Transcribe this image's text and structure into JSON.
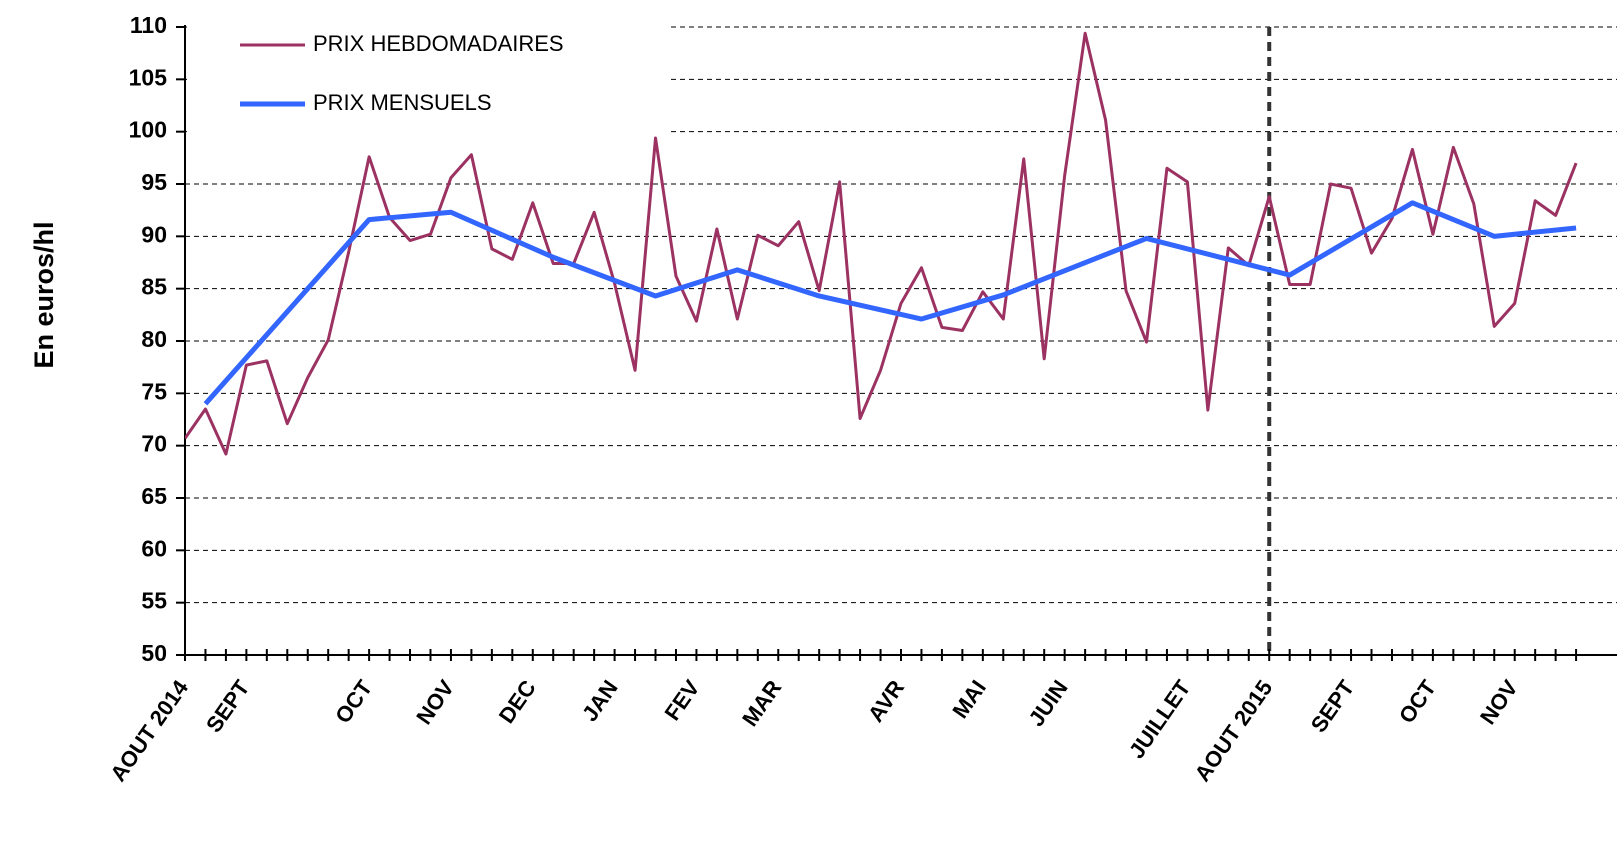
{
  "chart_data": {
    "type": "line",
    "y_label": "En euros/hl",
    "categories": [
      "AOUT 2014",
      null,
      null,
      "SEPT",
      null,
      null,
      null,
      null,
      null,
      "OCT",
      null,
      null,
      null,
      "NOV",
      null,
      null,
      null,
      "DEC",
      null,
      null,
      null,
      "JAN",
      null,
      null,
      null,
      "FEV",
      null,
      null,
      null,
      "MAR",
      null,
      null,
      null,
      null,
      null,
      "AVR",
      null,
      null,
      null,
      "MAI",
      null,
      null,
      null,
      "JUIN",
      null,
      null,
      null,
      null,
      null,
      "JUILLET",
      null,
      null,
      null,
      "AOUT 2015",
      null,
      null,
      null,
      "SEPT",
      null,
      null,
      null,
      "OCT",
      null,
      null,
      null,
      "NOV",
      null,
      null,
      null
    ],
    "xlim": [
      0,
      70
    ],
    "ylim": [
      50,
      110
    ],
    "yticks": [
      50,
      55,
      60,
      65,
      70,
      75,
      80,
      85,
      90,
      95,
      100,
      105,
      110
    ],
    "grid": true,
    "marker_category": 53,
    "series": [
      {
        "name": "PRIX HEBDOMADAIRES",
        "color": "#9b3262",
        "values": [
          70.7,
          73.5,
          69.2,
          77.7,
          78.1,
          72.1,
          76.5,
          80.1,
          88.5,
          97.6,
          91.8,
          89.6,
          90.2,
          95.6,
          97.8,
          88.8,
          87.8,
          93.2,
          87.4,
          87.4,
          92.3,
          85.5,
          77.2,
          99.4,
          86.2,
          81.9,
          90.7,
          82.1,
          90.1,
          89.1,
          91.4,
          84.8,
          95.2,
          72.6,
          77.2,
          83.6,
          87.0,
          81.3,
          81.0,
          84.7,
          82.1,
          97.4,
          78.3,
          95.8,
          109.4,
          101.1,
          84.8,
          79.9,
          96.5,
          95.2,
          73.4,
          88.9,
          87.2,
          93.8,
          85.4,
          85.4,
          95.0,
          94.6,
          88.4,
          91.7,
          98.3,
          90.2,
          98.5,
          93.1,
          81.4,
          83.6,
          93.4,
          92.0,
          97.0
        ]
      },
      {
        "name": "PRIX MENSUELS",
        "color": "#3366ff",
        "x": [
          1,
          9,
          13,
          18,
          23,
          27,
          31,
          36,
          40,
          47,
          54,
          60,
          64,
          68
        ],
        "values": [
          74.0,
          91.6,
          92.3,
          88.0,
          84.3,
          86.8,
          84.3,
          82.1,
          84.4,
          89.8,
          86.3,
          93.2,
          90.0,
          90.8
        ]
      }
    ]
  }
}
